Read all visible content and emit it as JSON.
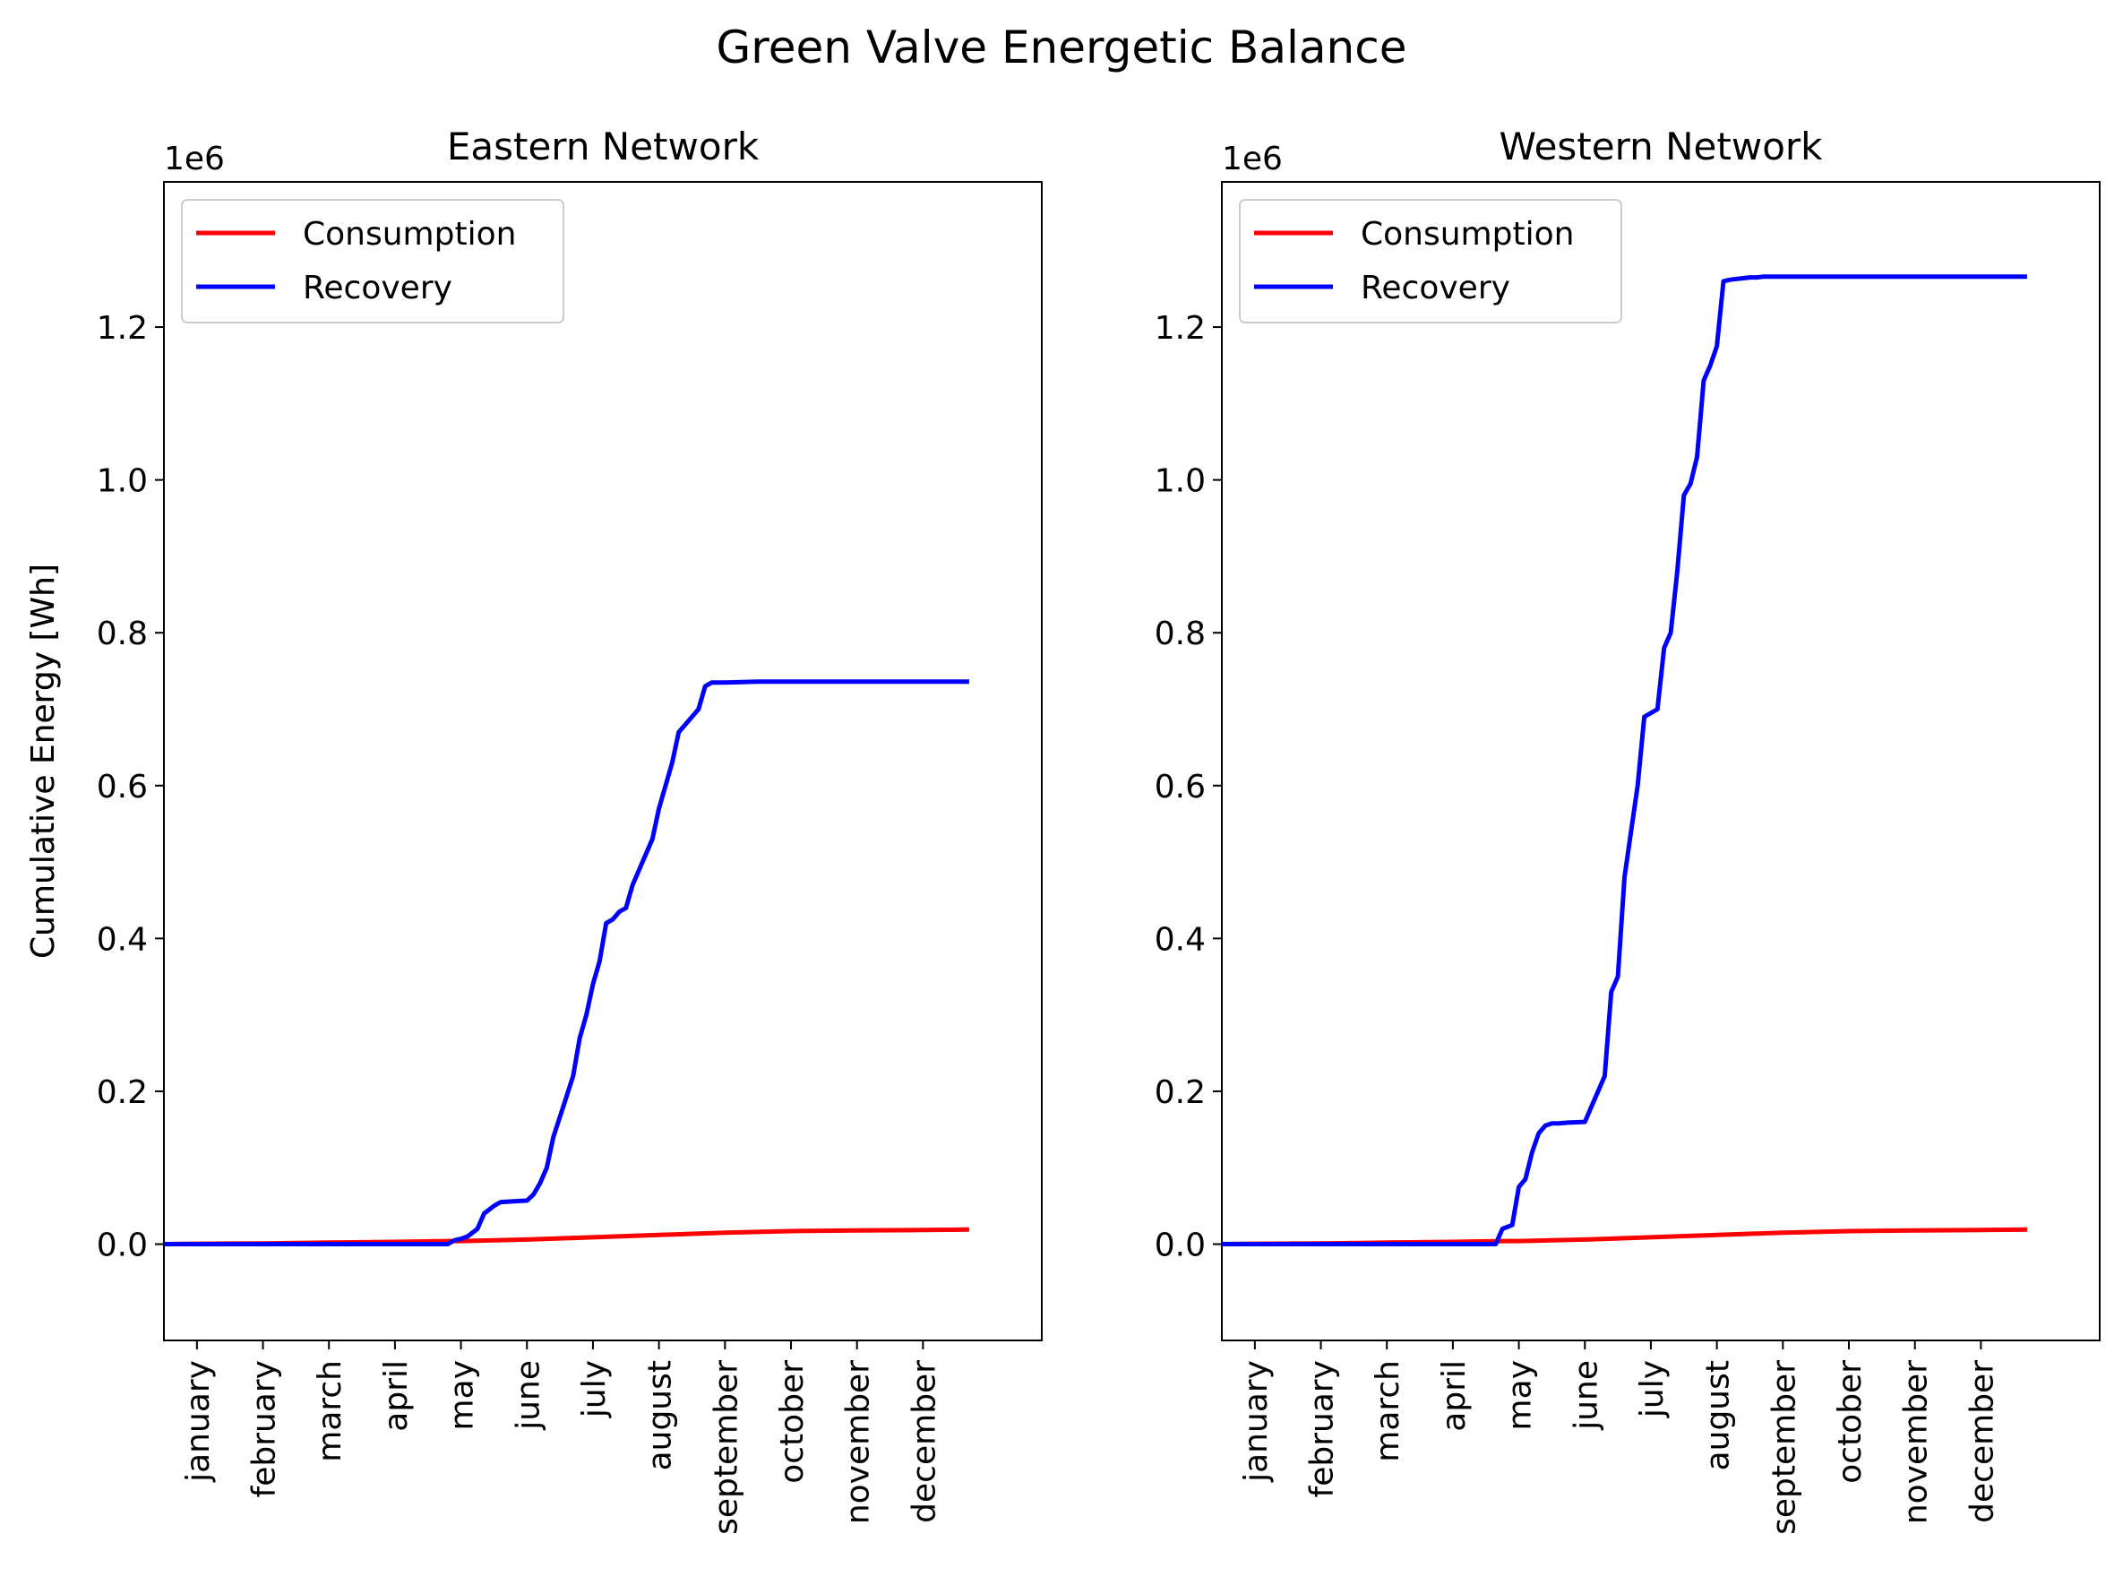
{
  "suptitle": "Green Valve Energetic Balance",
  "colors": {
    "consumption": "#ff0000",
    "recovery": "#0000ff"
  },
  "chart_data": [
    {
      "type": "line",
      "title": "Eastern Network",
      "xlabel": "",
      "ylabel": "Cumulative Energy [Wh]",
      "y_offset_label": "1e6",
      "xlim": [
        -0.5,
        12.8
      ],
      "ylim": [
        -0.126,
        1.39
      ],
      "x_ticks": [
        0,
        1,
        2,
        3,
        4,
        5,
        6,
        7,
        8,
        9,
        10,
        11
      ],
      "x_tick_labels": [
        "january",
        "february",
        "march",
        "april",
        "may",
        "june",
        "july",
        "august",
        "september",
        "october",
        "november",
        "december"
      ],
      "y_ticks": [
        0.0,
        0.2,
        0.4,
        0.6,
        0.8,
        1.0,
        1.2
      ],
      "y_tick_labels": [
        "0.0",
        "0.2",
        "0.4",
        "0.6",
        "0.8",
        "1.0",
        "1.2"
      ],
      "legend": "upper-left",
      "grid": false,
      "series": [
        {
          "name": "Consumption",
          "color": "#ff0000",
          "x": [
            -0.55,
            0,
            1,
            2,
            3,
            3.8,
            4,
            5,
            6,
            7,
            8,
            9,
            10,
            11,
            11.7
          ],
          "y": [
            0.0,
            0.0005,
            0.001,
            0.002,
            0.003,
            0.004,
            0.004,
            0.006,
            0.009,
            0.012,
            0.015,
            0.017,
            0.018,
            0.0185,
            0.019
          ]
        },
        {
          "name": "Recovery",
          "color": "#0000ff",
          "x": [
            -0.55,
            0,
            1,
            2,
            3,
            3.8,
            3.9,
            4.0,
            4.1,
            4.25,
            4.35,
            4.5,
            4.6,
            5.0,
            5.1,
            5.2,
            5.3,
            5.4,
            5.55,
            5.7,
            5.8,
            5.9,
            6.0,
            6.1,
            6.2,
            6.3,
            6.4,
            6.5,
            6.6,
            6.75,
            6.9,
            7.0,
            7.1,
            7.2,
            7.3,
            7.4,
            7.5,
            7.6,
            7.7,
            7.8,
            7.9,
            8.0,
            8.5,
            9.0,
            10.0,
            11.0,
            11.7
          ],
          "y": [
            0.0,
            0.0,
            0.0,
            0.0,
            0.0,
            0.0,
            0.005,
            0.007,
            0.01,
            0.02,
            0.04,
            0.05,
            0.055,
            0.057,
            0.065,
            0.08,
            0.1,
            0.14,
            0.18,
            0.22,
            0.27,
            0.3,
            0.34,
            0.37,
            0.42,
            0.425,
            0.435,
            0.44,
            0.47,
            0.5,
            0.53,
            0.57,
            0.6,
            0.63,
            0.67,
            0.68,
            0.69,
            0.7,
            0.73,
            0.735,
            0.735,
            0.735,
            0.736,
            0.736,
            0.736,
            0.736,
            0.736
          ]
        }
      ]
    },
    {
      "type": "line",
      "title": "Western Network",
      "xlabel": "",
      "ylabel": "Cumulative Energy [Wh]",
      "y_offset_label": "1e6",
      "xlim": [
        -0.5,
        12.8
      ],
      "ylim": [
        -0.126,
        1.39
      ],
      "x_ticks": [
        0,
        1,
        2,
        3,
        4,
        5,
        6,
        7,
        8,
        9,
        10,
        11
      ],
      "x_tick_labels": [
        "january",
        "february",
        "march",
        "april",
        "may",
        "june",
        "july",
        "august",
        "september",
        "october",
        "november",
        "december"
      ],
      "y_ticks": [
        0.0,
        0.2,
        0.4,
        0.6,
        0.8,
        1.0,
        1.2
      ],
      "y_tick_labels": [
        "0.0",
        "0.2",
        "0.4",
        "0.6",
        "0.8",
        "1.0",
        "1.2"
      ],
      "legend": "upper-left",
      "grid": false,
      "series": [
        {
          "name": "Consumption",
          "color": "#ff0000",
          "x": [
            -0.55,
            0,
            1,
            2,
            3,
            3.8,
            4,
            5,
            6,
            7,
            8,
            9,
            10,
            11,
            11.7
          ],
          "y": [
            0.0,
            0.0005,
            0.001,
            0.002,
            0.003,
            0.004,
            0.004,
            0.006,
            0.009,
            0.012,
            0.015,
            0.017,
            0.018,
            0.0185,
            0.019
          ]
        },
        {
          "name": "Recovery",
          "color": "#0000ff",
          "x": [
            -0.55,
            0,
            1,
            2,
            3,
            3.65,
            3.75,
            3.9,
            4.0,
            4.1,
            4.2,
            4.3,
            4.4,
            4.5,
            4.6,
            4.75,
            5.0,
            5.1,
            5.2,
            5.3,
            5.4,
            5.5,
            5.6,
            5.7,
            5.8,
            5.9,
            6.0,
            6.1,
            6.2,
            6.3,
            6.4,
            6.5,
            6.6,
            6.7,
            6.8,
            6.9,
            7.0,
            7.1,
            7.2,
            7.3,
            7.4,
            7.5,
            7.6,
            7.7,
            7.8,
            7.9,
            8.0,
            8.5,
            9.0,
            10.0,
            11.0,
            11.7
          ],
          "y": [
            0.0,
            0.0,
            0.0,
            0.0,
            0.0,
            0.0,
            0.02,
            0.025,
            0.075,
            0.085,
            0.12,
            0.145,
            0.155,
            0.158,
            0.158,
            0.159,
            0.16,
            0.18,
            0.2,
            0.22,
            0.33,
            0.35,
            0.48,
            0.54,
            0.6,
            0.69,
            0.695,
            0.7,
            0.78,
            0.8,
            0.88,
            0.98,
            0.995,
            1.03,
            1.13,
            1.15,
            1.175,
            1.26,
            1.262,
            1.263,
            1.264,
            1.265,
            1.265,
            1.266,
            1.266,
            1.266,
            1.266,
            1.266,
            1.266,
            1.266,
            1.266,
            1.266
          ]
        }
      ]
    }
  ]
}
